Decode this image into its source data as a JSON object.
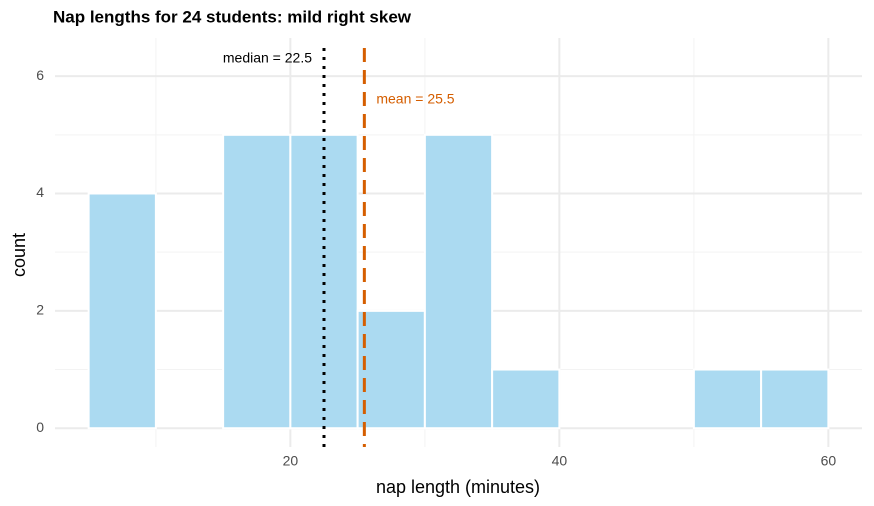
{
  "chart_data": {
    "type": "histogram",
    "title": "Nap lengths for 24 students: mild right skew",
    "x_label": "nap length (minutes)",
    "y_label": "count",
    "bins": [
      5,
      10,
      15,
      20,
      25,
      30,
      35,
      40,
      45,
      50,
      55,
      60
    ],
    "values": [
      4,
      0,
      5,
      5,
      2,
      5,
      1,
      0,
      0,
      1,
      1
    ],
    "color": "#abdaf1",
    "xlim": [
      2.5,
      62.5
    ],
    "ylim": [
      -0.32,
      6.65
    ],
    "xticks": [
      20,
      40,
      60
    ],
    "yticks": [
      0,
      2,
      4,
      6
    ],
    "xminor": [
      10,
      30,
      50
    ],
    "yminor": [
      1,
      3,
      5
    ],
    "grid": true,
    "annotations": [
      {
        "text": "median = 22.5",
        "x": 22.5,
        "color": "#000000",
        "style": "dotted"
      },
      {
        "text": "mean = 25.5",
        "x": 25.5,
        "color": "#d55e00",
        "style": "dashed"
      }
    ]
  }
}
